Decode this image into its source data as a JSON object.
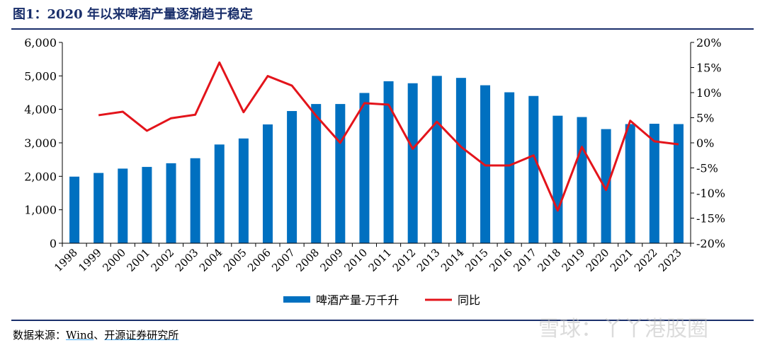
{
  "figure_title": "图1：2020 年以来啤酒产量逐渐趋于稳定",
  "source": {
    "prefix": "数据来源：",
    "items": [
      "Wind",
      "开源证券研究所"
    ],
    "separator": "、"
  },
  "watermark": "雪球：丫丫港股圈",
  "colors": {
    "bar": "#0070c0",
    "line": "#e3141b",
    "title": "#1a2f6b"
  },
  "chart_data": {
    "type": "bar",
    "categories": [
      "1998",
      "1999",
      "2000",
      "2001",
      "2002",
      "2003",
      "2004",
      "2005",
      "2006",
      "2007",
      "2008",
      "2009",
      "2010",
      "2011",
      "2012",
      "2013",
      "2014",
      "2015",
      "2016",
      "2017",
      "2018",
      "2019",
      "2020",
      "2021",
      "2022",
      "2023"
    ],
    "series": [
      {
        "name": "啤酒产量-万千升",
        "type": "bar",
        "axis": "left",
        "values": [
          1990,
          2100,
          2230,
          2280,
          2390,
          2540,
          2950,
          3130,
          3550,
          3950,
          4160,
          4160,
          4490,
          4840,
          4780,
          5000,
          4940,
          4720,
          4510,
          4400,
          3810,
          3770,
          3410,
          3560,
          3570,
          3560
        ]
      },
      {
        "name": "同比",
        "type": "line",
        "axis": "right",
        "values": [
          null,
          5.5,
          6.2,
          2.4,
          4.9,
          5.6,
          16.0,
          6.1,
          13.3,
          11.4,
          5.4,
          0.0,
          7.9,
          7.6,
          -1.2,
          4.2,
          -0.8,
          -4.5,
          -4.5,
          -2.5,
          -13.5,
          -0.8,
          -9.4,
          4.4,
          0.3,
          -0.3
        ]
      }
    ],
    "y_left": {
      "min": 0,
      "max": 6000,
      "ticks": [
        "0",
        "1,000",
        "2,000",
        "3,000",
        "4,000",
        "5,000",
        "6,000"
      ]
    },
    "y_right": {
      "min": -20,
      "max": 20,
      "ticks": [
        "-20%",
        "-15%",
        "-10%",
        "-5%",
        "0%",
        "5%",
        "10%",
        "15%",
        "20%"
      ]
    },
    "grid": false,
    "legend_position": "bottom-center"
  }
}
